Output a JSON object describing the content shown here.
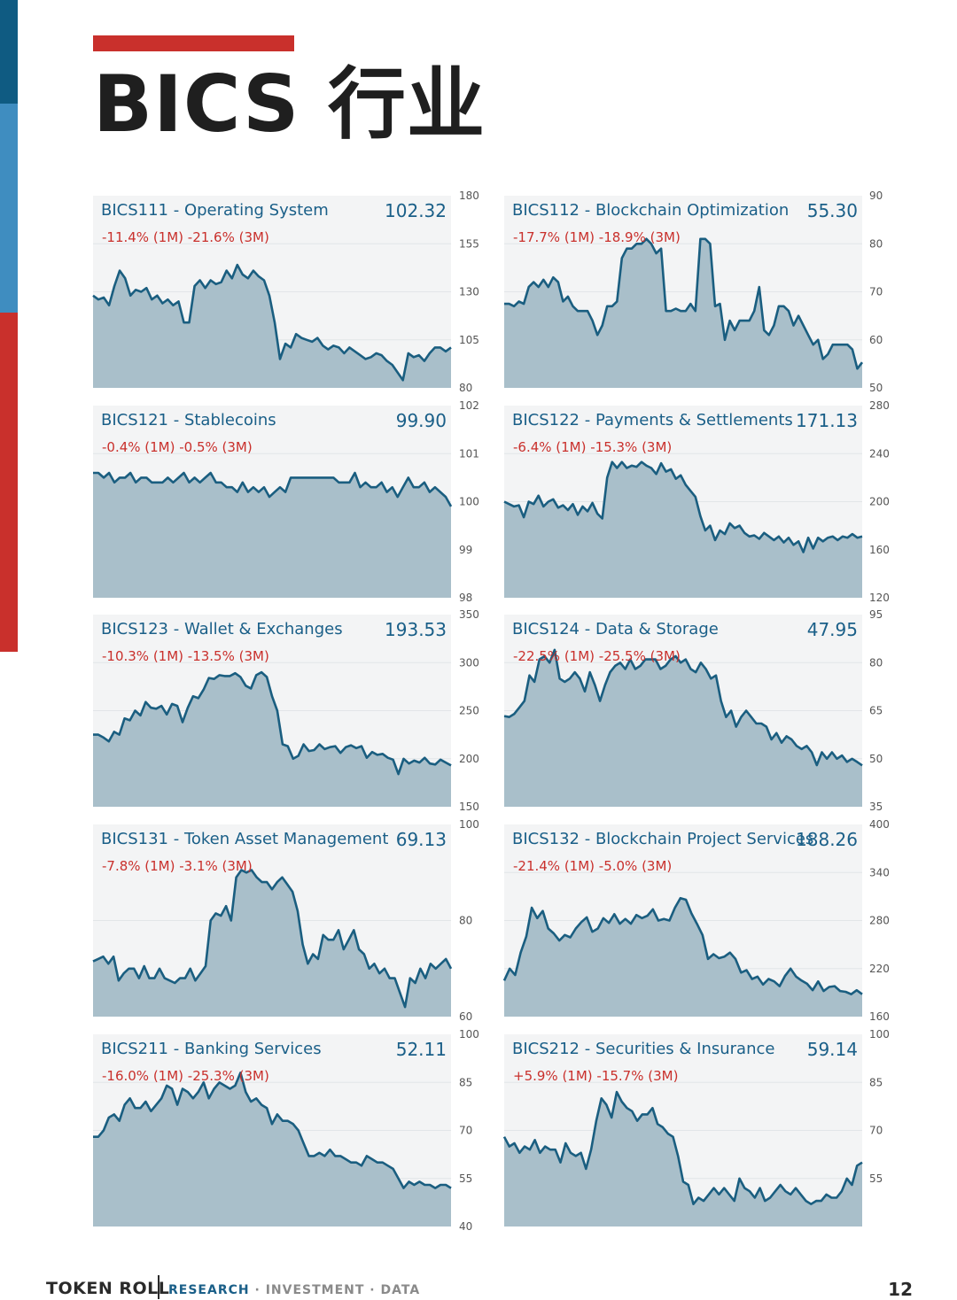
{
  "page": {
    "title": "BICS 行业",
    "footer": {
      "brand": "TOKEN ROLL",
      "tagline_accent": "RESEARCH",
      "tagline_sep1": " · ",
      "tagline_item2": "INVESTMENT",
      "tagline_sep2": " · ",
      "tagline_item3": "DATA"
    },
    "page_number": "12"
  },
  "colors": {
    "fill": "#a9bfca",
    "line": "#1a5e80",
    "panel_bg": "#f3f4f5",
    "title_text": "#1a5f88",
    "perf_text": "#c9302c",
    "axis_text": "#555555"
  },
  "chart_data": [
    {
      "type": "area",
      "title": "BICS111 - Operating System",
      "value": "102.32",
      "perf": "-11.4% (1M) -21.6% (3M)",
      "ylim": [
        80,
        180
      ],
      "yticks": [
        180,
        155,
        130,
        105,
        80
      ],
      "values": [
        128,
        126,
        127,
        123,
        133,
        141,
        137,
        128,
        131,
        130,
        132,
        126,
        128,
        124,
        126,
        123,
        125,
        114,
        114,
        133,
        136,
        132,
        136,
        134,
        135,
        141,
        137,
        144,
        139,
        137,
        141,
        138,
        136,
        128,
        114,
        95,
        103,
        101,
        108,
        106,
        105,
        104,
        106,
        102,
        100,
        102,
        101,
        98,
        101,
        99,
        97,
        95,
        96,
        98,
        97,
        94,
        92,
        88,
        84,
        98,
        96,
        97,
        94,
        98,
        101,
        101,
        99,
        101
      ]
    },
    {
      "type": "area",
      "title": "BICS112 - Blockchain Optimization",
      "value": "55.30",
      "perf": "-17.7% (1M) -18.9% (3M)",
      "ylim": [
        50,
        90
      ],
      "yticks": [
        90,
        80,
        70,
        60,
        50
      ],
      "values": [
        67.5,
        67.5,
        67,
        68,
        67.5,
        71,
        72,
        71,
        72.5,
        71,
        73,
        72,
        68,
        69,
        67,
        66,
        66,
        66,
        64,
        61,
        63,
        67,
        67,
        68,
        77,
        79,
        79,
        80,
        80,
        81,
        80,
        78,
        79,
        66,
        66,
        66.5,
        66,
        66,
        67.5,
        66,
        81,
        81,
        80,
        67,
        67.5,
        60,
        64,
        62,
        64,
        64,
        64,
        66,
        71,
        62,
        61,
        63,
        67,
        67,
        66,
        63,
        65,
        63,
        61,
        59,
        60,
        56,
        57,
        59,
        59,
        59,
        59,
        58,
        54,
        55.3
      ]
    },
    {
      "type": "area",
      "title": "BICS121 - Stablecoins",
      "value": "99.90",
      "perf": "-0.4% (1M) -0.5% (3M)",
      "ylim": [
        98,
        102
      ],
      "yticks": [
        102,
        101,
        100,
        99,
        98
      ],
      "values": [
        100.6,
        100.6,
        100.5,
        100.6,
        100.4,
        100.5,
        100.5,
        100.6,
        100.4,
        100.5,
        100.5,
        100.4,
        100.4,
        100.4,
        100.5,
        100.4,
        100.5,
        100.6,
        100.4,
        100.5,
        100.4,
        100.5,
        100.6,
        100.4,
        100.4,
        100.3,
        100.3,
        100.2,
        100.4,
        100.2,
        100.3,
        100.2,
        100.3,
        100.1,
        100.2,
        100.3,
        100.2,
        100.5,
        100.5,
        100.5,
        100.5,
        100.5,
        100.5,
        100.5,
        100.5,
        100.5,
        100.4,
        100.4,
        100.4,
        100.6,
        100.3,
        100.4,
        100.3,
        100.3,
        100.4,
        100.2,
        100.3,
        100.1,
        100.3,
        100.5,
        100.3,
        100.3,
        100.4,
        100.2,
        100.3,
        100.2,
        100.1,
        99.9
      ]
    },
    {
      "type": "area",
      "title": "BICS122 - Payments & Settlements",
      "value": "171.13",
      "perf": "-6.4% (1M) -15.3% (3M)",
      "ylim": [
        120,
        280
      ],
      "yticks": [
        280,
        240,
        200,
        160,
        120
      ],
      "values": [
        200,
        198,
        196,
        197,
        187,
        200,
        198,
        205,
        196,
        200,
        202,
        195,
        197,
        193,
        198,
        189,
        196,
        192,
        199,
        190,
        186,
        220,
        233,
        228,
        233,
        228,
        230,
        229,
        233,
        230,
        228,
        223,
        232,
        225,
        227,
        219,
        222,
        214,
        209,
        204,
        188,
        176,
        180,
        168,
        176,
        173,
        182,
        178,
        180,
        174,
        171,
        172,
        169,
        174,
        171,
        168,
        171,
        166,
        170,
        164,
        167,
        158,
        170,
        161,
        170,
        167,
        170,
        171,
        168,
        171,
        170,
        173,
        170,
        171
      ]
    },
    {
      "type": "area",
      "title": "BICS123 - Wallet & Exchanges",
      "value": "193.53",
      "perf": "-10.3% (1M) -13.5% (3M)",
      "ylim": [
        150,
        350
      ],
      "yticks": [
        350,
        300,
        250,
        200,
        150
      ],
      "values": [
        225,
        225,
        222,
        218,
        228,
        225,
        242,
        240,
        250,
        245,
        259,
        253,
        252,
        255,
        246,
        257,
        255,
        238,
        253,
        265,
        263,
        272,
        284,
        283,
        287,
        286,
        286,
        289,
        285,
        276,
        273,
        287,
        290,
        285,
        265,
        250,
        215,
        213,
        200,
        203,
        215,
        208,
        209,
        215,
        210,
        212,
        213,
        206,
        212,
        214,
        211,
        213,
        201,
        207,
        204,
        205,
        201,
        199,
        184,
        200,
        195,
        198,
        196,
        201,
        195,
        194,
        199,
        196,
        193
      ]
    },
    {
      "type": "area",
      "title": "BICS124 - Data & Storage",
      "value": "47.95",
      "perf": "-22.5% (1M) -25.5% (3M)",
      "ylim": [
        35,
        95
      ],
      "yticks": [
        95,
        80,
        65,
        50,
        35
      ],
      "values": [
        63.3,
        63,
        64,
        66,
        68,
        76,
        74,
        81,
        82,
        80,
        84,
        75,
        74,
        75,
        77,
        75,
        71,
        77,
        73,
        68,
        73,
        77,
        79,
        80,
        78,
        81,
        78,
        79,
        81,
        81,
        81,
        78,
        79,
        81,
        82,
        80,
        81,
        78,
        77,
        80,
        78,
        75,
        76,
        68,
        63,
        65,
        60,
        63,
        65,
        63,
        61,
        61,
        60,
        56,
        58,
        55,
        57,
        56,
        54,
        53,
        54,
        52,
        48,
        52,
        50,
        52,
        50,
        51,
        49,
        50,
        49,
        47.9
      ]
    },
    {
      "type": "area",
      "title": "BICS131 - Token Asset Management",
      "value": "69.13",
      "perf": "-7.8% (1M) -3.1% (3M)",
      "ylim": [
        60,
        100
      ],
      "yticks": [
        100,
        80,
        60
      ],
      "values": [
        71.5,
        72,
        72.5,
        71,
        72.5,
        67.5,
        69,
        70,
        70,
        68,
        70.5,
        68,
        68,
        70,
        68,
        67.5,
        67,
        68,
        68,
        70,
        67.5,
        69,
        70.5,
        80,
        81.5,
        81,
        83,
        80,
        89,
        90.5,
        90,
        90.5,
        89,
        88,
        88,
        86.5,
        88,
        89,
        87.5,
        86,
        82,
        75,
        71,
        73,
        72,
        77,
        76,
        76,
        78,
        74,
        76,
        78,
        74,
        73,
        70,
        71,
        69,
        70,
        68,
        68,
        65,
        62,
        68,
        67,
        70,
        68,
        71,
        70,
        71,
        72,
        70
      ]
    },
    {
      "type": "area",
      "title": "BICS132 - Blockchain Project Services",
      "value": "188.26",
      "perf": "-21.4% (1M) -5.0% (3M)",
      "ylim": [
        160,
        400
      ],
      "yticks": [
        400,
        340,
        280,
        220,
        160
      ],
      "values": [
        205,
        220,
        212,
        240,
        260,
        296,
        283,
        292,
        270,
        264,
        255,
        262,
        259,
        270,
        278,
        284,
        266,
        270,
        283,
        277,
        288,
        276,
        282,
        276,
        287,
        283,
        286,
        294,
        280,
        282,
        280,
        296,
        308,
        306,
        289,
        276,
        262,
        232,
        238,
        233,
        235,
        240,
        232,
        215,
        218,
        207,
        210,
        200,
        207,
        204,
        198,
        211,
        220,
        210,
        205,
        201,
        193,
        204,
        192,
        197,
        198,
        192,
        191,
        188,
        193,
        188
      ]
    },
    {
      "type": "area",
      "title": "BICS211 - Banking Services",
      "value": "52.11",
      "perf": "-16.0% (1M) -25.3% (3M)",
      "ylim": [
        40,
        100
      ],
      "yticks": [
        100,
        85,
        70,
        55,
        40
      ],
      "values": [
        68,
        68,
        70,
        74,
        75,
        73,
        78,
        80,
        77,
        77,
        79,
        76,
        78,
        80,
        84,
        83,
        78,
        83,
        82,
        80,
        82,
        85,
        80,
        83,
        85,
        84,
        83,
        84,
        88,
        82,
        79,
        80,
        78,
        77,
        72,
        75,
        73,
        73,
        72,
        70,
        66,
        62,
        62,
        63,
        62,
        64,
        62,
        62,
        61,
        60,
        60,
        59,
        62,
        61,
        60,
        60,
        59,
        58,
        55,
        52,
        54,
        53,
        54,
        53,
        53,
        52,
        53,
        53,
        52
      ]
    },
    {
      "type": "area",
      "title": "BICS212 - Securities & Insurance",
      "value": "59.14",
      "perf": "+5.9% (1M) -15.7% (3M)",
      "ylim": [
        40,
        100
      ],
      "yticks": [
        100,
        85,
        70,
        55
      ],
      "values": [
        68,
        65,
        66,
        63,
        65,
        64,
        67,
        63,
        65,
        64,
        64,
        60,
        66,
        63,
        62,
        63,
        58,
        64,
        73,
        80,
        78,
        74,
        82,
        79,
        77,
        76,
        73,
        75,
        75,
        77,
        72,
        71,
        69,
        68,
        62,
        54,
        53,
        47,
        49,
        48,
        50,
        52,
        50,
        52,
        50,
        48,
        55,
        52,
        51,
        49,
        52,
        48,
        49,
        51,
        53,
        51,
        50,
        52,
        50,
        48,
        47,
        48,
        48,
        50,
        49,
        49,
        51,
        55,
        53,
        59,
        60
      ]
    }
  ]
}
